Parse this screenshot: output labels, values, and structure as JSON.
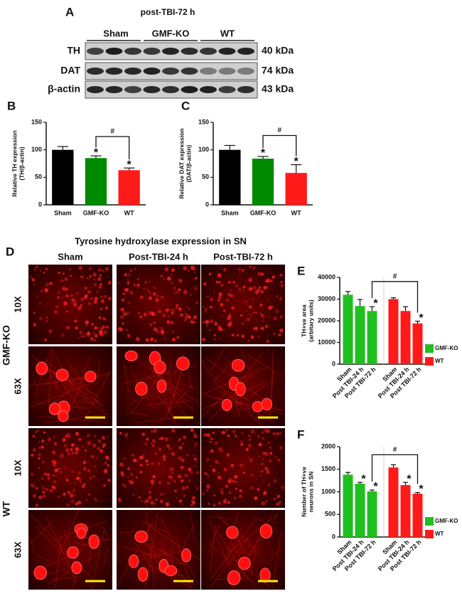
{
  "blot": {
    "panel": "A",
    "title": "post-TBI-72 h",
    "groups": [
      "Sham",
      "GMF-KO",
      "WT"
    ],
    "rows": [
      {
        "label": "TH",
        "size": "40 kDa"
      },
      {
        "label": "DAT",
        "size": "74 kDa"
      },
      {
        "label": "β-actin",
        "size": "43 kDa"
      }
    ]
  },
  "micrographs": {
    "panel": "D",
    "title": "Tyrosine hydroxylase expression in SN",
    "columns": [
      "Sham",
      "Post-TBI-24 h",
      "Post-TBI-72 h"
    ],
    "groups": [
      {
        "name": "GMF-KO",
        "rows": [
          "10X",
          "63X"
        ]
      },
      {
        "name": "WT",
        "rows": [
          "10X",
          "63X"
        ]
      }
    ]
  },
  "chart_data": [
    {
      "type": "bar",
      "panel": "B",
      "y_label": [
        "Relative TH expression",
        "(TH/β-actin)"
      ],
      "categories": [
        "Sham",
        "GMF-KO",
        "WT"
      ],
      "values": [
        100,
        85,
        63
      ],
      "errors": [
        6,
        4,
        4
      ],
      "colors": [
        "#000000",
        "#008a00",
        "#ff1a1a"
      ],
      "significance": [
        null,
        "*",
        "*"
      ],
      "bracket_label": "#",
      "ylim": [
        0,
        150
      ],
      "yticks": [
        0,
        50,
        100,
        150
      ]
    },
    {
      "type": "bar",
      "panel": "C",
      "y_label": [
        "Relative DAT expression",
        "(DAT/β-actin)"
      ],
      "categories": [
        "Sham",
        "GMF-KO",
        "WT"
      ],
      "values": [
        100,
        84,
        58
      ],
      "errors": [
        8,
        4,
        15
      ],
      "colors": [
        "#000000",
        "#008a00",
        "#ff1a1a"
      ],
      "significance": [
        null,
        "*",
        "*"
      ],
      "bracket_label": "#",
      "ylim": [
        0,
        150
      ],
      "yticks": [
        0,
        50,
        100,
        150
      ]
    },
    {
      "type": "bar",
      "panel": "E",
      "y_label": [
        "TH+ve area",
        "(arbitary units)"
      ],
      "categories": [
        "Sham",
        "Post TBI-24 h",
        "Post TBI-72 h"
      ],
      "series": [
        {
          "name": "GMF-KO",
          "color": "#1fbf1f",
          "values": [
            32000,
            26800,
            24500
          ],
          "errors": [
            1500,
            3000,
            2000
          ],
          "significance": [
            null,
            null,
            "*"
          ]
        },
        {
          "name": "WT",
          "color": "#ff1a1a",
          "values": [
            30000,
            24500,
            18800
          ],
          "errors": [
            600,
            2000,
            1000
          ],
          "significance": [
            null,
            null,
            "*"
          ]
        }
      ],
      "bracket_label": "#",
      "ylim": [
        0,
        40000
      ],
      "yticks": [
        0,
        10000,
        20000,
        30000,
        40000
      ]
    },
    {
      "type": "bar",
      "panel": "F",
      "y_label": [
        "Number of TH+ve",
        "neurons in SN"
      ],
      "categories": [
        "Sham",
        "Post TBI-24 h",
        "Post TBI-72 h"
      ],
      "series": [
        {
          "name": "GMF-KO",
          "color": "#1fbf1f",
          "values": [
            1380,
            1180,
            1010
          ],
          "errors": [
            50,
            30,
            30
          ],
          "significance": [
            null,
            "*",
            "*"
          ]
        },
        {
          "name": "WT",
          "color": "#ff1a1a",
          "values": [
            1540,
            1150,
            960
          ],
          "errors": [
            60,
            60,
            25
          ],
          "significance": [
            null,
            "*",
            "*"
          ]
        }
      ],
      "bracket_label": "#",
      "ylim": [
        0,
        2000
      ],
      "yticks": [
        0,
        500,
        1000,
        1500,
        2000
      ]
    }
  ]
}
